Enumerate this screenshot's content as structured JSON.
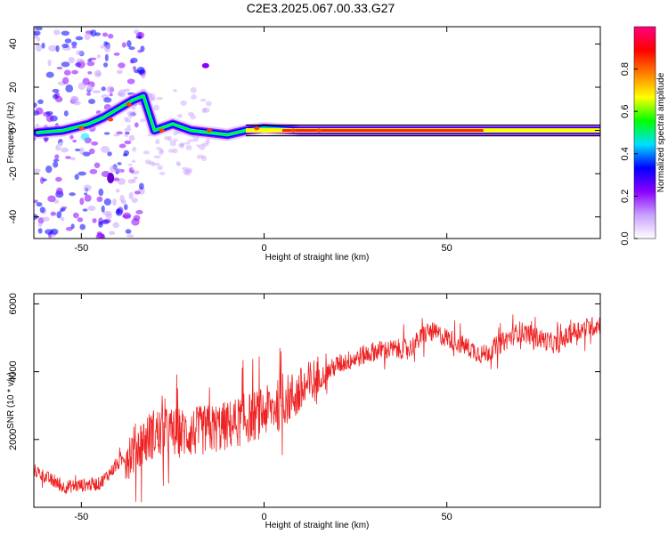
{
  "title": "C2E3.2025.067.00.33.G27",
  "chart_data": [
    {
      "type": "heatmap",
      "xlabel": "Height of straight line (km)",
      "ylabel": "Frequency (Hz)",
      "xlim": [
        -63,
        92
      ],
      "ylim": [
        -50,
        48
      ],
      "xticks": [
        "-50",
        "0",
        "50"
      ],
      "yticks": [
        "-40",
        "-20",
        "0",
        "20",
        "40"
      ],
      "colorbar": {
        "label": "Normalized spectral amplitude",
        "range": [
          0,
          1
        ],
        "ticks": [
          "0.0",
          "0.2",
          "0.4",
          "0.6",
          "0.8"
        ],
        "colors": [
          "#ffffff",
          "#c8a0ff",
          "#8a00ff",
          "#0000ff",
          "#00e0ff",
          "#00ff00",
          "#ffff00",
          "#ff8000",
          "#ff0000",
          "#ff0080"
        ]
      },
      "ridge": [
        {
          "x": -62,
          "y": -1
        },
        {
          "x": -55,
          "y": 0
        },
        {
          "x": -48,
          "y": 3
        },
        {
          "x": -44,
          "y": 6
        },
        {
          "x": -40,
          "y": 10
        },
        {
          "x": -36,
          "y": 14
        },
        {
          "x": -33,
          "y": 16
        },
        {
          "x": -30,
          "y": 0
        },
        {
          "x": -25,
          "y": 3
        },
        {
          "x": -20,
          "y": 0
        },
        {
          "x": -10,
          "y": -2
        },
        {
          "x": -5,
          "y": 0
        },
        {
          "x": 0,
          "y": 1
        },
        {
          "x": 10,
          "y": 0
        },
        {
          "x": 20,
          "y": 0
        },
        {
          "x": 40,
          "y": 0
        },
        {
          "x": 60,
          "y": 0
        },
        {
          "x": 80,
          "y": 0
        },
        {
          "x": 92,
          "y": 0
        }
      ]
    },
    {
      "type": "line",
      "xlabel": "Height of straight line (km)",
      "ylabel": "SNR (10 * v/v)",
      "xlim": [
        -63,
        92
      ],
      "ylim": [
        0,
        6300
      ],
      "xticks": [
        "-50",
        "0",
        "50"
      ],
      "yticks": [
        "2000",
        "4000",
        "6000"
      ],
      "color": "#ee2222",
      "envelope": [
        {
          "x": -63,
          "y": 1100
        },
        {
          "x": -55,
          "y": 600
        },
        {
          "x": -45,
          "y": 700
        },
        {
          "x": -38,
          "y": 1500
        },
        {
          "x": -30,
          "y": 2200
        },
        {
          "x": -20,
          "y": 2200
        },
        {
          "x": -10,
          "y": 2400
        },
        {
          "x": 0,
          "y": 2800
        },
        {
          "x": 10,
          "y": 3400
        },
        {
          "x": 20,
          "y": 4200
        },
        {
          "x": 30,
          "y": 4600
        },
        {
          "x": 40,
          "y": 4700
        },
        {
          "x": 45,
          "y": 5200
        },
        {
          "x": 50,
          "y": 5000
        },
        {
          "x": 60,
          "y": 4500
        },
        {
          "x": 70,
          "y": 5200
        },
        {
          "x": 80,
          "y": 4800
        },
        {
          "x": 85,
          "y": 5200
        },
        {
          "x": 92,
          "y": 5400
        }
      ]
    }
  ]
}
